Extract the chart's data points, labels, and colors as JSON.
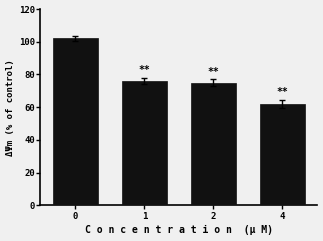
{
  "categories": [
    "0",
    "1",
    "2",
    "4"
  ],
  "values": [
    102,
    76,
    75,
    62
  ],
  "errors": [
    1.5,
    2.0,
    2.0,
    2.5
  ],
  "bar_color": "#111111",
  "bar_width": 0.65,
  "xlabel": "C o n c e n t r a t i o n  (μ M)",
  "ylabel": "ΔΨm (% of control)",
  "ylim": [
    0,
    120
  ],
  "yticks": [
    0,
    20,
    40,
    60,
    80,
    100,
    120
  ],
  "significance": [
    "",
    "**",
    "**",
    "**"
  ],
  "sig_fontsize": 7,
  "xlabel_fontsize": 7,
  "ylabel_fontsize": 6.5,
  "tick_fontsize": 6.5,
  "background_color": "#f0f0f0",
  "error_capsize": 2.5,
  "error_linewidth": 1.0
}
